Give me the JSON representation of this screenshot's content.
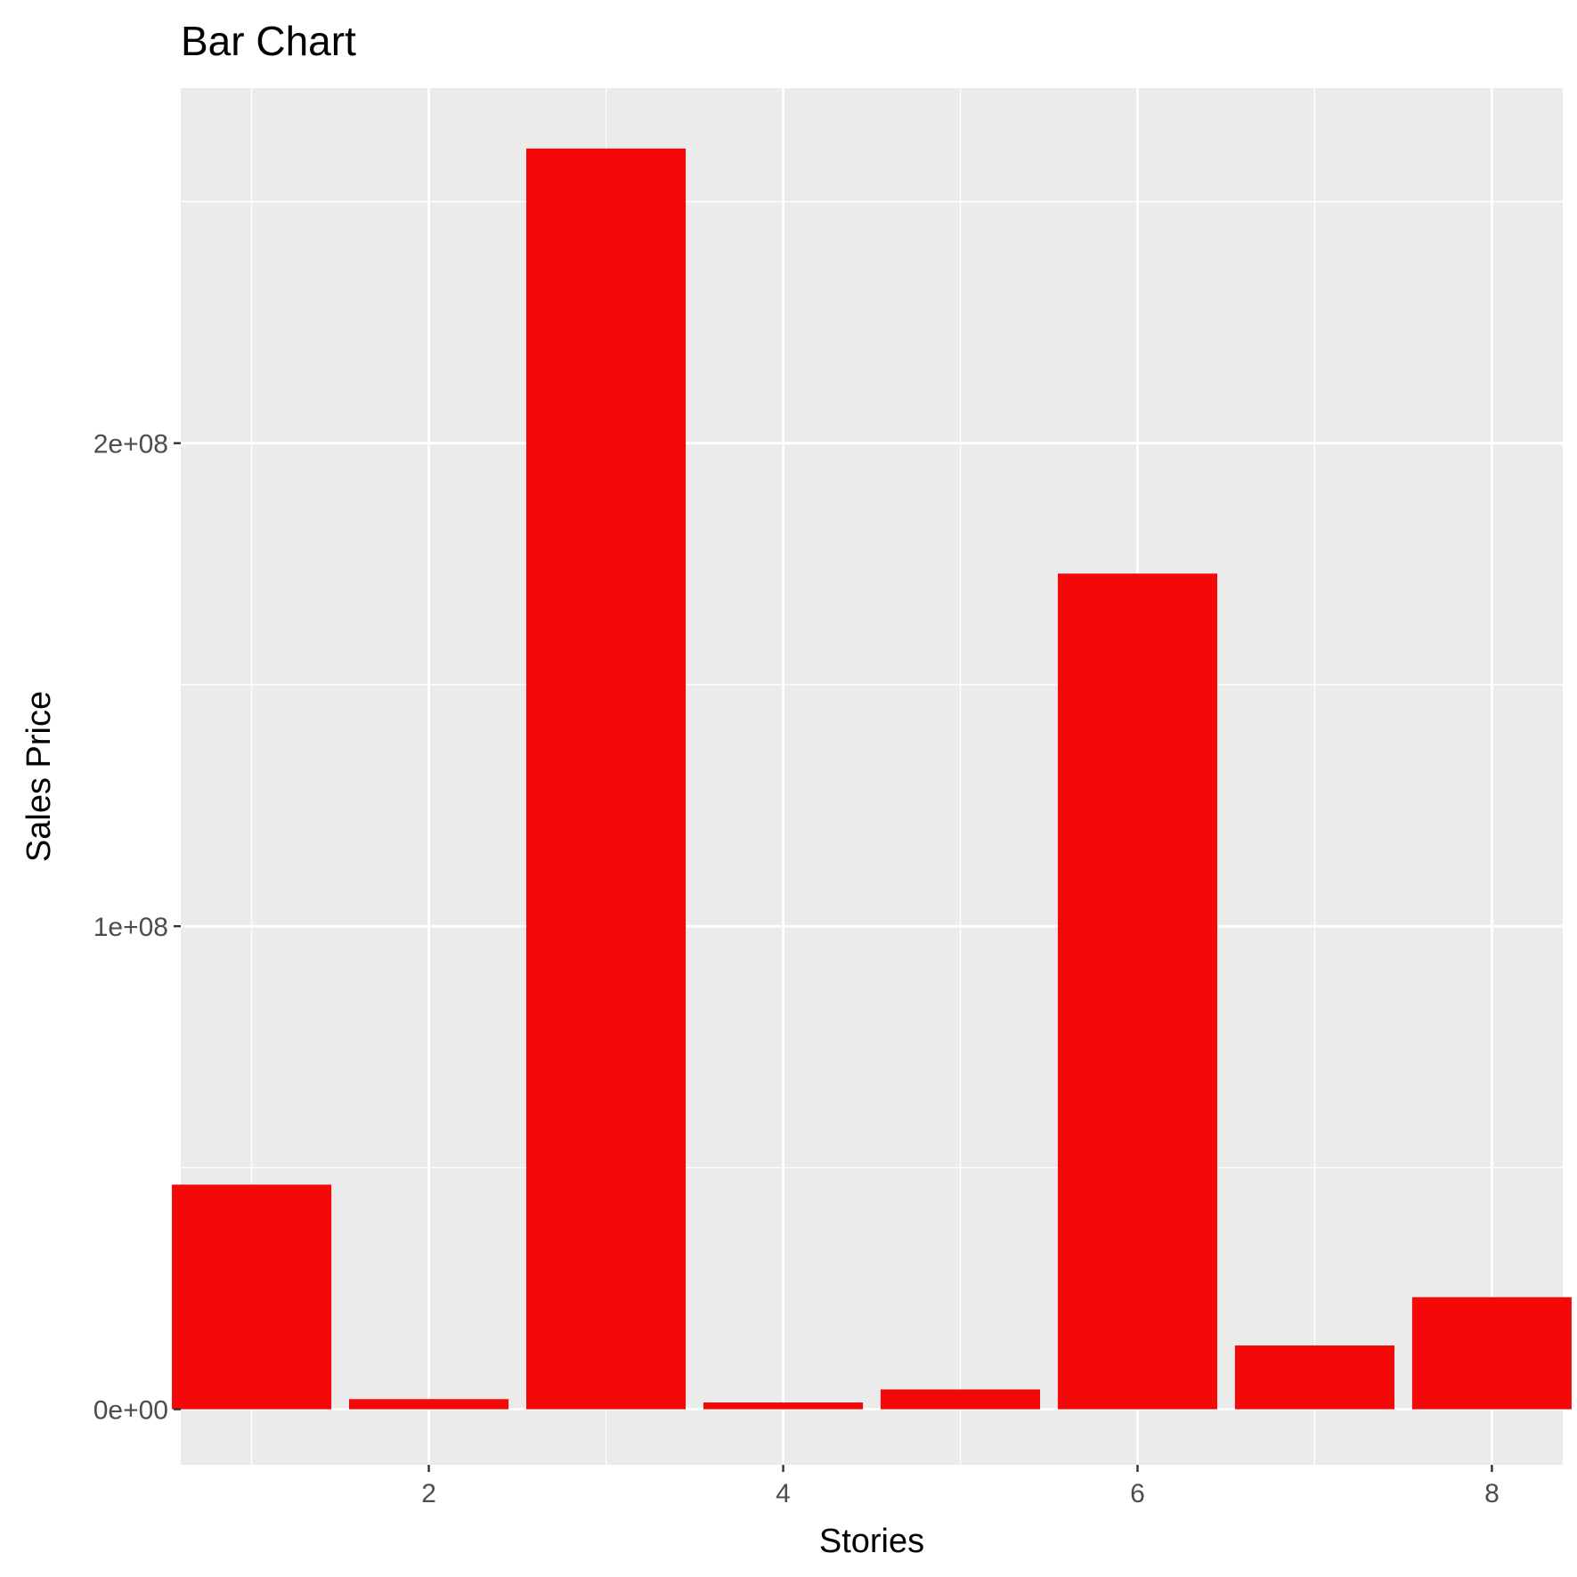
{
  "chart_data": {
    "type": "bar",
    "title": "Bar Chart",
    "xlabel": "Stories",
    "ylabel": "Sales Price",
    "x": [
      1,
      2,
      3,
      4,
      5,
      6,
      7,
      8
    ],
    "values": [
      46500000,
      2100000,
      261000000,
      1400000,
      4100000,
      173000000,
      13200000,
      23200000
    ],
    "xlim": [
      0.6,
      8.4
    ],
    "ylim": [
      -11500000,
      273500000
    ],
    "x_ticks": [
      2,
      4,
      6,
      8
    ],
    "x_tick_labels": [
      "2",
      "4",
      "6",
      "8"
    ],
    "y_ticks": [
      0,
      100000000,
      200000000
    ],
    "y_tick_labels": [
      "0e+00",
      "1e+08",
      "2e+08"
    ],
    "grid": true,
    "legend": "none",
    "bar_color": "#f50808",
    "panel_background": "#ebebeb",
    "grid_color": "#ffffff"
  }
}
